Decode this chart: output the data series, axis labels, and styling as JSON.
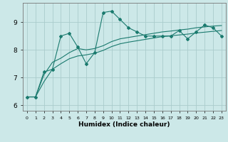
{
  "xlabel": "Humidex (Indice chaleur)",
  "bg_color": "#cce8e8",
  "grid_color": "#aacccc",
  "line_color": "#1a7a6e",
  "xlim": [
    -0.5,
    23.5
  ],
  "ylim": [
    5.8,
    9.7
  ],
  "xticks": [
    0,
    1,
    2,
    3,
    4,
    5,
    6,
    7,
    8,
    9,
    10,
    11,
    12,
    13,
    14,
    15,
    16,
    17,
    18,
    19,
    20,
    21,
    22,
    23
  ],
  "yticks": [
    6,
    7,
    8,
    9
  ],
  "line1_x": [
    0,
    1,
    2,
    3,
    4,
    5,
    6,
    7,
    8,
    9,
    10,
    11,
    12,
    13,
    14,
    15,
    16,
    17,
    18,
    19,
    20,
    21,
    22,
    23
  ],
  "line1_y": [
    6.3,
    6.3,
    7.2,
    7.3,
    8.5,
    8.6,
    8.1,
    7.5,
    7.9,
    9.35,
    9.4,
    9.1,
    8.8,
    8.65,
    8.5,
    8.5,
    8.5,
    8.5,
    8.7,
    8.4,
    8.65,
    8.9,
    8.8,
    8.5
  ],
  "line2_x": [
    0,
    1,
    2,
    3,
    4,
    5,
    6,
    7,
    8,
    9,
    10,
    11,
    12,
    13,
    14,
    15,
    16,
    17,
    18,
    19,
    20,
    21,
    22,
    23
  ],
  "line2_y": [
    6.3,
    6.3,
    7.1,
    7.55,
    7.7,
    7.9,
    8.05,
    8.0,
    8.05,
    8.15,
    8.3,
    8.4,
    8.45,
    8.5,
    8.55,
    8.6,
    8.65,
    8.68,
    8.72,
    8.75,
    8.8,
    8.83,
    8.86,
    8.88
  ],
  "line3_x": [
    0,
    1,
    2,
    3,
    4,
    5,
    6,
    7,
    8,
    9,
    10,
    11,
    12,
    13,
    14,
    15,
    16,
    17,
    18,
    19,
    20,
    21,
    22,
    23
  ],
  "line3_y": [
    6.3,
    6.3,
    6.85,
    7.3,
    7.5,
    7.68,
    7.78,
    7.82,
    7.88,
    7.98,
    8.12,
    8.22,
    8.28,
    8.33,
    8.38,
    8.43,
    8.48,
    8.51,
    8.54,
    8.57,
    8.61,
    8.64,
    8.67,
    8.7
  ]
}
